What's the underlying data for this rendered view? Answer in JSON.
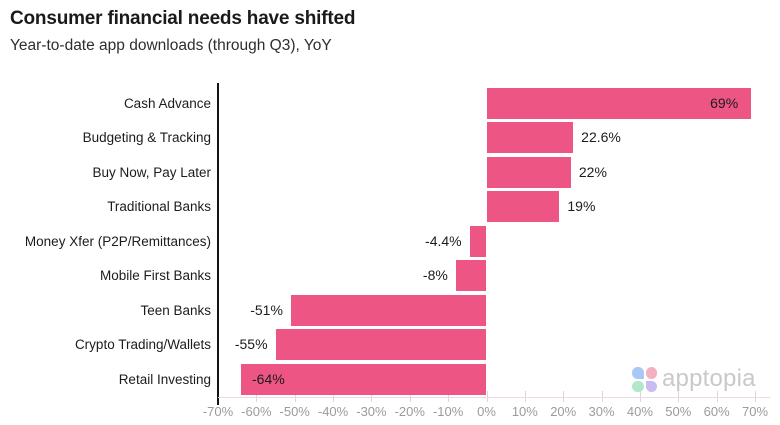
{
  "header": {
    "title": "Consumer financial needs have shifted",
    "subtitle": "Year-to-date app downloads (through Q3), YoY"
  },
  "chart_data": {
    "type": "bar",
    "orientation": "horizontal",
    "title": "Consumer financial needs have shifted",
    "subtitle": "Year-to-date app downloads (through Q3), YoY",
    "categories": [
      "Cash Advance",
      "Budgeting & Tracking",
      "Buy Now, Pay Later",
      "Traditional Banks",
      "Money Xfer (P2P/Remittances)",
      "Mobile First Banks",
      "Teen Banks",
      "Crypto Trading/Wallets",
      "Retail Investing"
    ],
    "values": [
      69,
      22.6,
      22,
      19,
      -4.4,
      -8,
      -51,
      -55,
      -64
    ],
    "value_labels": [
      "69%",
      "22.6%",
      "22%",
      "19%",
      "-4.4%",
      "-8%",
      "-51%",
      "-55%",
      "-64%"
    ],
    "xlim": [
      -70,
      70
    ],
    "x_ticks": [
      -70,
      -60,
      -50,
      -40,
      -30,
      -20,
      -10,
      0,
      10,
      20,
      30,
      40,
      50,
      60,
      70
    ],
    "x_tick_labels": [
      "-70%",
      "-60%",
      "-50%",
      "-40%",
      "-30%",
      "-20%",
      "-10%",
      "0%",
      "10%",
      "20%",
      "30%",
      "40%",
      "50%",
      "60%",
      "70%"
    ],
    "grid": false,
    "legend": false,
    "bar_color": "#ED5585",
    "axis_line_color": "#141414",
    "tick_label_color": "#9b9b9b"
  },
  "branding": {
    "logo_text": "apptopia",
    "petal_colors": {
      "top_left": "#a9c8f3",
      "top_right": "#f5b0bf",
      "bottom_left": "#b2e8c8",
      "bottom_right": "#c9bcf2"
    },
    "wordmark_color": "#c9c9c9"
  }
}
